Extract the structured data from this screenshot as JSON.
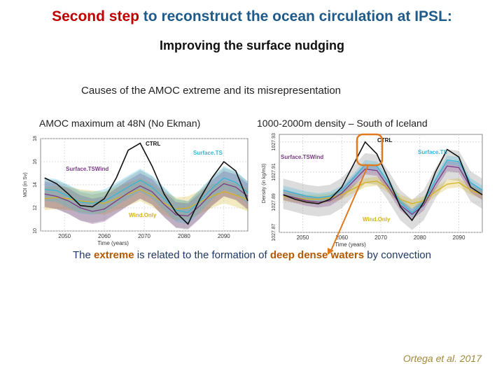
{
  "title": {
    "red_part": "Second step",
    "rest": " to reconstruct the ocean circulation at IPSL:"
  },
  "subtitle": "Improving the surface nudging",
  "causes": "Causes of the AMOC extreme  and its misrepresentation",
  "left_caption": "AMOC maximum at 48N (No Ekman)",
  "right_caption": "1000-2000m density – South of Iceland",
  "conclusion": {
    "p1": "The ",
    "w1": "extreme",
    "p2": " is related to the formation of ",
    "w2": "deep dense waters",
    "p3": " by convection"
  },
  "citation": "Ortega et al. 2017",
  "colors": {
    "CTRL": "#111111",
    "SurfaceTS": "#38b6d6",
    "SurfaceTSWind": "#7b3b86",
    "WindOnly": "#d4b21f",
    "grey": "#9a9a9a",
    "arrow": "#e07a1f"
  },
  "chart_data": [
    {
      "type": "line",
      "title": "AMOC maximum at 48N (No Ekman)",
      "xlabel": "Time (years)",
      "ylabel": "MOI (in Sv)",
      "xticks": [
        "2050",
        "2060",
        "2070",
        "2080",
        "2090"
      ],
      "yticks": [
        "10",
        "12",
        "14",
        "16",
        "18"
      ],
      "xlim": [
        2044,
        2096
      ],
      "ylim": [
        10,
        18
      ],
      "legend": [
        "CTRL",
        "Surface.TS",
        "Surface.TSWind",
        "Wind.Only"
      ],
      "x": [
        2045,
        2048,
        2051,
        2054,
        2057,
        2060,
        2063,
        2066,
        2069,
        2072,
        2075,
        2078,
        2081,
        2084,
        2087,
        2090,
        2093,
        2096
      ],
      "series": [
        {
          "name": "CTRL",
          "values": [
            14.6,
            14.1,
            13.2,
            12.2,
            12.1,
            12.8,
            14.6,
            17.0,
            17.6,
            15.6,
            13.2,
            11.6,
            10.6,
            12.8,
            14.6,
            16.0,
            15.2,
            12.6
          ]
        },
        {
          "name": "Surface.TS",
          "values": [
            13.6,
            13.5,
            13.0,
            12.5,
            12.4,
            12.6,
            13.2,
            13.8,
            14.4,
            13.8,
            12.8,
            11.8,
            11.6,
            12.6,
            13.7,
            14.6,
            14.2,
            13.3
          ]
        },
        {
          "name": "Surface.TSWind",
          "values": [
            13.2,
            13.0,
            12.6,
            12.0,
            11.7,
            11.9,
            12.6,
            13.3,
            13.9,
            13.4,
            12.3,
            11.4,
            11.3,
            12.2,
            13.3,
            14.1,
            13.8,
            13.0
          ]
        },
        {
          "name": "Wind.Only",
          "values": [
            12.8,
            12.9,
            12.8,
            12.6,
            12.5,
            12.4,
            12.8,
            13.2,
            13.6,
            13.1,
            12.4,
            11.9,
            12.0,
            12.5,
            13.0,
            13.4,
            13.1,
            12.7
          ]
        }
      ]
    },
    {
      "type": "line",
      "title": "1000-2000m density – South of Iceland",
      "xlabel": "Time (years)",
      "ylabel": "Density (in kg/m3)",
      "xticks": [
        "2050",
        "2060",
        "2070",
        "2080",
        "2090"
      ],
      "yticks": [
        "1027.87",
        "1027.89",
        "1027.91",
        "1027.93"
      ],
      "xlim": [
        2044,
        2096
      ],
      "ylim": [
        1027.87,
        1027.935
      ],
      "legend": [
        "CTRL",
        "Surface.TS",
        "Surface.TSWind",
        "Wind.Only"
      ],
      "x": [
        2045,
        2048,
        2051,
        2054,
        2057,
        2060,
        2063,
        2066,
        2069,
        2072,
        2075,
        2078,
        2081,
        2084,
        2087,
        2090,
        2093,
        2096
      ],
      "series": [
        {
          "name": "CTRL",
          "values": [
            1027.895,
            1027.892,
            1027.89,
            1027.889,
            1027.892,
            1027.9,
            1027.915,
            1027.93,
            1027.922,
            1027.905,
            1027.887,
            1027.878,
            1027.89,
            1027.91,
            1027.925,
            1027.92,
            1027.9,
            1027.895
          ]
        },
        {
          "name": "Surface.TS",
          "values": [
            1027.898,
            1027.896,
            1027.894,
            1027.893,
            1027.894,
            1027.898,
            1027.906,
            1027.915,
            1027.914,
            1027.903,
            1027.89,
            1027.883,
            1027.89,
            1027.905,
            1027.918,
            1027.917,
            1027.903,
            1027.898
          ]
        },
        {
          "name": "Surface.TSWind",
          "values": [
            1027.895,
            1027.893,
            1027.891,
            1027.89,
            1027.891,
            1027.896,
            1027.904,
            1027.912,
            1027.911,
            1027.9,
            1027.888,
            1027.882,
            1027.888,
            1027.902,
            1027.914,
            1027.913,
            1027.9,
            1027.895
          ]
        },
        {
          "name": "Wind.Only",
          "values": [
            1027.894,
            1027.893,
            1027.892,
            1027.892,
            1027.893,
            1027.895,
            1027.899,
            1027.903,
            1027.904,
            1027.899,
            1027.892,
            1027.889,
            1027.891,
            1027.897,
            1027.902,
            1027.903,
            1027.898,
            1027.895
          ]
        }
      ]
    }
  ]
}
